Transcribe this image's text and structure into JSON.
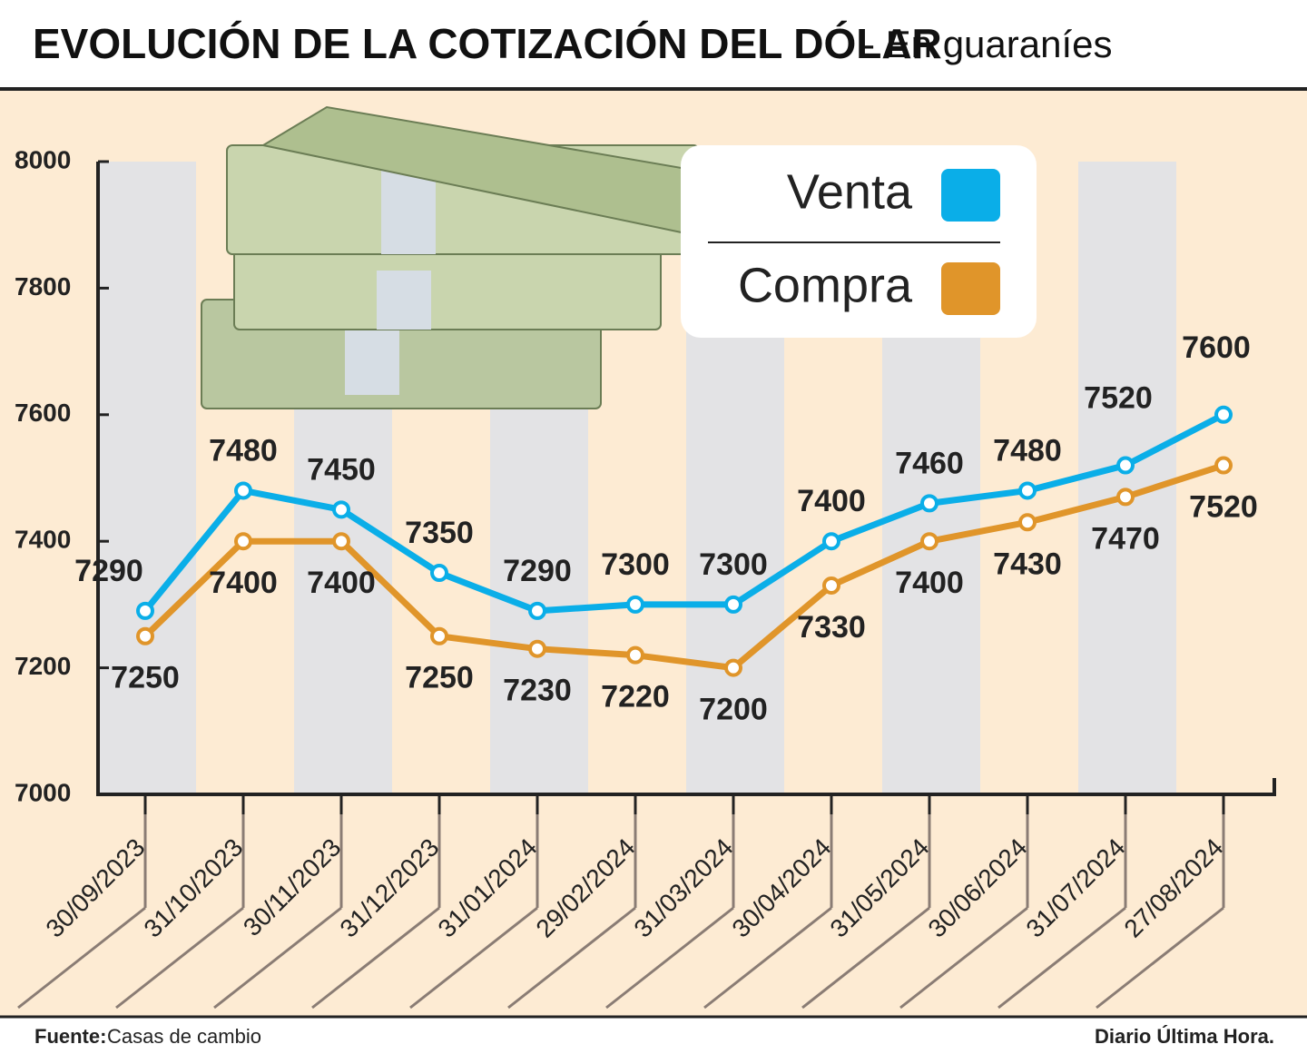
{
  "chart_data": {
    "type": "line",
    "title": "EVOLUCIÓN DE LA COTIZACIÓN DEL DÓLAR",
    "subtitle": "- En guaraníes",
    "categories": [
      "30/09/2023",
      "31/10/2023",
      "30/11/2023",
      "31/12/2023",
      "31/01/2024",
      "29/02/2024",
      "31/03/2024",
      "30/04/2024",
      "31/05/2024",
      "30/06/2024",
      "31/07/2024",
      "27/08/2024"
    ],
    "series": [
      {
        "name": "Venta",
        "color": "#0aaee8",
        "values": [
          7290,
          7480,
          7450,
          7350,
          7290,
          7300,
          7300,
          7400,
          7460,
          7480,
          7520,
          7600
        ]
      },
      {
        "name": "Compra",
        "color": "#e0952a",
        "values": [
          7250,
          7400,
          7400,
          7250,
          7230,
          7220,
          7200,
          7330,
          7400,
          7430,
          7470,
          7520
        ]
      }
    ],
    "ylim": [
      7000,
      8000
    ],
    "yticks": [
      7000,
      7200,
      7400,
      7600,
      7800,
      8000
    ],
    "legend": "top-right",
    "source": {
      "label": "Fuente:",
      "text": "Casas de cambio"
    },
    "credit": "Diario Última Hora."
  }
}
